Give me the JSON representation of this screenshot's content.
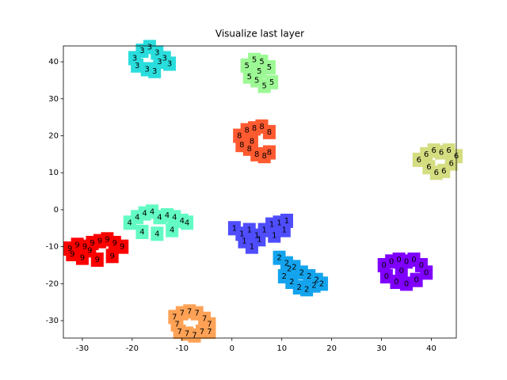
{
  "chart_data": {
    "type": "text-scatter",
    "title": "Visualize last layer",
    "xlim": [
      -33.8,
      45
    ],
    "ylim": [
      -34.7,
      44.3
    ],
    "xticks": [
      -30,
      -20,
      -10,
      0,
      10,
      20,
      30,
      40
    ],
    "yticks": [
      -30,
      -20,
      -10,
      0,
      10,
      20,
      30,
      40
    ],
    "series": [
      {
        "name": "0",
        "color": "#8000ff",
        "x": [
          30.5,
          32,
          33.5,
          35,
          36.5,
          38,
          31,
          33,
          35,
          37,
          39,
          34
        ],
        "values": [
          -15,
          -14,
          -13.5,
          -14,
          -13.5,
          -15,
          -18,
          -19.5,
          -20,
          -19,
          -17,
          -16.5
        ]
      },
      {
        "name": "1",
        "color": "#4f4dfc",
        "x": [
          0.5,
          2,
          3.5,
          5,
          6.5,
          8,
          9.5,
          11,
          2.5,
          5.5,
          8.5,
          10.5,
          4
        ],
        "values": [
          -5,
          -6.5,
          -5.5,
          -7,
          -5.5,
          -4,
          -3.5,
          -3,
          -8.5,
          -8,
          -7,
          -5.5,
          -10
        ]
      },
      {
        "name": "2",
        "color": "#14a4ed",
        "x": [
          9.5,
          11,
          12.5,
          14,
          15.5,
          17,
          18,
          10.5,
          12,
          13.5,
          15,
          16.5,
          11.5
        ],
        "values": [
          -13,
          -14.5,
          -15.5,
          -17,
          -18,
          -19,
          -20,
          -18,
          -19.5,
          -21,
          -21.5,
          -20.5,
          -16
        ]
      },
      {
        "name": "3",
        "color": "#2adddd",
        "x": [
          -19.5,
          -18,
          -16.5,
          -15,
          -13.5,
          -12.5,
          -17,
          -15.5,
          -19,
          -14.5
        ],
        "values": [
          41,
          43,
          44,
          42.5,
          41,
          39.5,
          38,
          37.5,
          39,
          40
        ]
      },
      {
        "name": "4",
        "color": "#62fbc4",
        "x": [
          -20.5,
          -19,
          -17.5,
          -16,
          -14.5,
          -13,
          -11.5,
          -10,
          -9,
          -18,
          -15,
          -12
        ],
        "values": [
          -3.5,
          -2,
          -1,
          -0.5,
          -2,
          -1.5,
          -2,
          -3,
          -3.5,
          -6,
          -6.5,
          -5.5
        ]
      },
      {
        "name": "5",
        "color": "#9cf894",
        "x": [
          3,
          4.5,
          6,
          7.5,
          3.5,
          5,
          6.5,
          8,
          5.5
        ],
        "values": [
          39,
          40.5,
          40,
          38.5,
          36,
          35,
          33.5,
          34.5,
          37.5
        ]
      },
      {
        "name": "6",
        "color": "#d4dd80",
        "x": [
          37.5,
          39,
          40.5,
          42,
          43.5,
          45,
          39.5,
          41,
          42.5,
          44
        ],
        "values": [
          13.5,
          15,
          16,
          15.5,
          16,
          14.5,
          11.5,
          10,
          10.5,
          12.5
        ]
      },
      {
        "name": "7",
        "color": "#ffa256",
        "x": [
          -11.5,
          -10,
          -8.5,
          -7,
          -5.5,
          -4.5,
          -10.5,
          -9,
          -7.5,
          -6,
          -4.5,
          -11
        ],
        "values": [
          -29,
          -28,
          -27.5,
          -28,
          -29.5,
          -31,
          -33,
          -33.5,
          -34,
          -33,
          -33,
          -31
        ]
      },
      {
        "name": "8",
        "color": "#ff5a30",
        "x": [
          1.5,
          3,
          4.5,
          6,
          7.5,
          2,
          3.5,
          5,
          6.5,
          7.5,
          4
        ],
        "values": [
          20,
          21.5,
          22,
          22.5,
          21,
          17.5,
          16.5,
          15,
          14.5,
          15.5,
          18.5
        ]
      },
      {
        "name": "9",
        "color": "#ff0000",
        "x": [
          -32.5,
          -31,
          -29.5,
          -28,
          -26.5,
          -25,
          -23.5,
          -22,
          -30,
          -27,
          -24,
          -32,
          -28.5
        ],
        "values": [
          -10.5,
          -9.5,
          -10,
          -9,
          -8.5,
          -8,
          -9,
          -10,
          -13,
          -13.5,
          -12.5,
          -12,
          -11
        ]
      }
    ]
  }
}
